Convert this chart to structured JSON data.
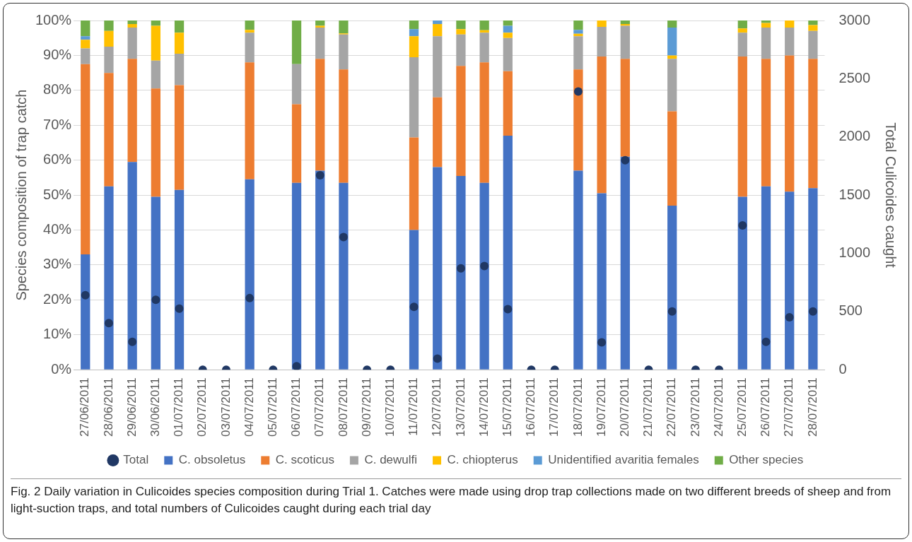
{
  "chart_data": {
    "type": "bar",
    "stacked": true,
    "ylabel": "Species composition of trap catch",
    "y2label": "Total Culicoides caught",
    "categories": [
      "27/06/2011",
      "28/06/2011",
      "29/06/2011",
      "30/06/2011",
      "01/07/2011",
      "02/07/2011",
      "03/07/2011",
      "04/07/2011",
      "05/07/2011",
      "06/07/2011",
      "07/07/2011",
      "08/07/2011",
      "09/07/2011",
      "10/07/2011",
      "11/07/2011",
      "12/07/2011",
      "13/07/2011",
      "14/07/2011",
      "15/07/2011",
      "16/07/2011",
      "17/07/2011",
      "18/07/2011",
      "19/07/2011",
      "20/07/2011",
      "21/07/2011",
      "22/07/2011",
      "23/07/2011",
      "24/07/2011",
      "25/07/2011",
      "26/07/2011",
      "27/07/2011",
      "28/07/2011"
    ],
    "series": [
      {
        "name": "C. obsoletus",
        "color": "#4472c4",
        "values": [
          33,
          52.5,
          59.5,
          49.5,
          51.5,
          0,
          0,
          54.5,
          0,
          53.5,
          57,
          53.5,
          0,
          0,
          40,
          58,
          55.5,
          53.5,
          67,
          0,
          0,
          57,
          50.5,
          61,
          0,
          47,
          0,
          0,
          49.5,
          52.5,
          51,
          52
        ]
      },
      {
        "name": "C. scoticus",
        "color": "#ed7d31",
        "values": [
          54.5,
          32.5,
          29.5,
          31,
          30,
          0,
          0,
          33.5,
          0,
          22.5,
          32,
          32.5,
          0,
          0,
          26.5,
          20,
          31.5,
          34.5,
          18.5,
          0,
          0,
          29,
          39.2,
          28,
          0,
          27,
          0,
          0,
          40.2,
          36.5,
          39,
          37
        ]
      },
      {
        "name": "C. dewulfi",
        "color": "#a5a5a5",
        "values": [
          4.5,
          7.5,
          9,
          8,
          9,
          0,
          0,
          8.5,
          0,
          11.5,
          9,
          10,
          0,
          0,
          23,
          17.5,
          9,
          8.5,
          9.5,
          0,
          0,
          9.5,
          8.5,
          9.5,
          0,
          15,
          0,
          0,
          6.8,
          9,
          8,
          8
        ]
      },
      {
        "name": "C. chiopterus",
        "color": "#ffc000",
        "values": [
          2.5,
          4.5,
          1,
          10,
          6,
          0,
          0,
          0.8,
          0,
          0,
          0.5,
          0.3,
          0,
          0,
          6,
          3.5,
          1.5,
          0.7,
          1.5,
          0,
          0,
          0.7,
          1.8,
          0.5,
          0,
          1,
          0,
          0,
          1.2,
          1.3,
          2,
          1.7
        ]
      },
      {
        "name": "Unidentified avaritia females",
        "color": "#5b9bd5",
        "values": [
          1,
          0,
          0,
          0,
          0,
          0,
          0,
          0,
          0,
          0,
          0,
          0,
          0,
          0,
          2,
          1,
          0,
          0,
          2,
          0,
          0,
          1.1,
          0,
          0,
          0,
          8,
          0,
          0,
          0,
          0,
          0,
          0
        ]
      },
      {
        "name": "Other species",
        "color": "#70ad47",
        "values": [
          4.5,
          3,
          1,
          1.5,
          3.5,
          0,
          0,
          2.7,
          0,
          12.5,
          1.5,
          3.7,
          0,
          0,
          2.5,
          0,
          2.5,
          2.8,
          1.5,
          0,
          0,
          2.7,
          0,
          1,
          0,
          2,
          0,
          0,
          2.3,
          0.7,
          0,
          1.3
        ]
      },
      {
        "name": "Total",
        "type": "scatter",
        "axis": "y2",
        "marker": "circle",
        "color": "#203864",
        "values": [
          640,
          400,
          240,
          600,
          525,
          0,
          0,
          615,
          0,
          30,
          1670,
          1140,
          0,
          0,
          540,
          95,
          870,
          890,
          520,
          0,
          0,
          2390,
          235,
          1800,
          0,
          500,
          0,
          0,
          1240,
          240,
          450,
          500
        ]
      }
    ],
    "ylim": [
      0,
      100
    ],
    "yticks": [
      {
        "value": 0,
        "label": "0%"
      },
      {
        "value": 10,
        "label": "10%"
      },
      {
        "value": 20,
        "label": "20%"
      },
      {
        "value": 30,
        "label": "30%"
      },
      {
        "value": 40,
        "label": "40%"
      },
      {
        "value": 50,
        "label": "50%"
      },
      {
        "value": 60,
        "label": "60%"
      },
      {
        "value": 70,
        "label": "70%"
      },
      {
        "value": 80,
        "label": "80%"
      },
      {
        "value": 90,
        "label": "90%"
      },
      {
        "value": 100,
        "label": "100%"
      }
    ],
    "y2lim": [
      0,
      3000
    ],
    "y2ticks": [
      0,
      500,
      1000,
      1500,
      2000,
      2500,
      3000
    ],
    "grid": "y",
    "legend": "bottom",
    "annotations": [
      "Fig. 2 Daily variation in Culicoides species composition during Trial 1. Catches were made using drop trap collections made on two different breeds of sheep and from light-suction traps, and total numbers of Culicoides caught during each trial day"
    ]
  }
}
